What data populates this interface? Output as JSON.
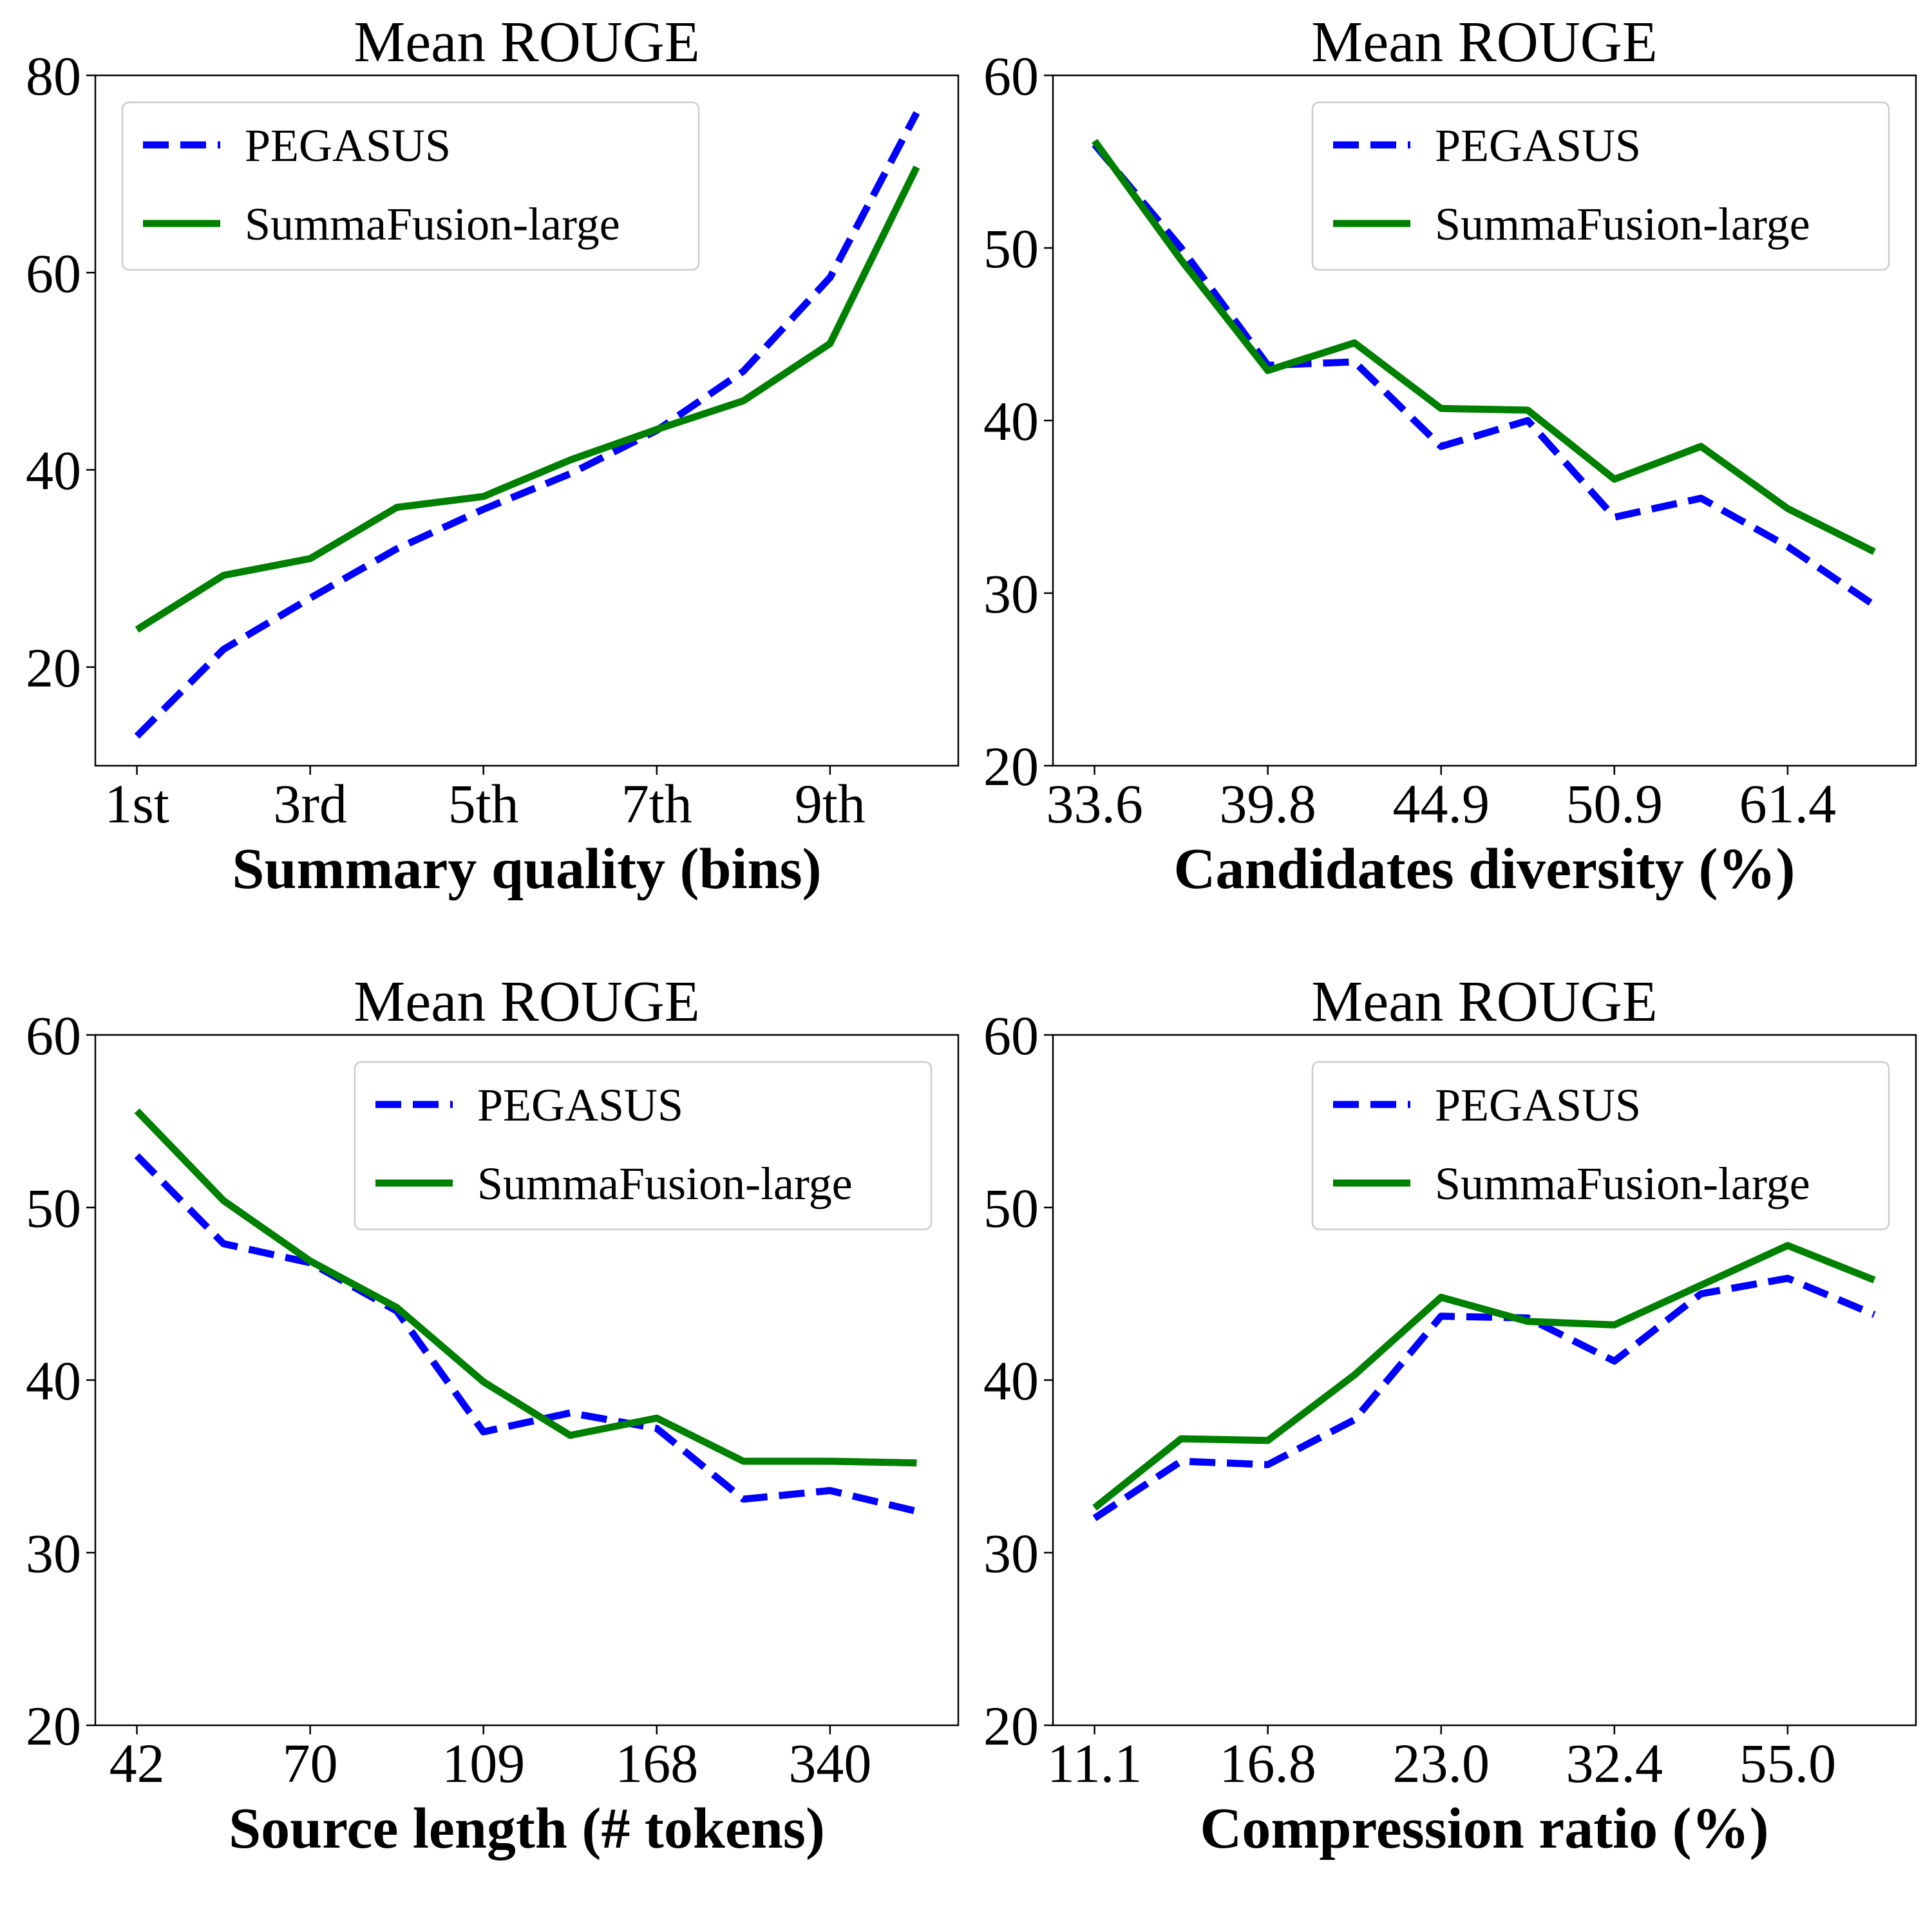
{
  "colors": {
    "pegasus": "#0000ff",
    "summafusion": "#008000"
  },
  "chart_data": [
    {
      "type": "line",
      "title": "Mean ROUGE",
      "xlabel": "Summary quality (bins)",
      "ylabel": "",
      "ylim": [
        10,
        80
      ],
      "yticks": [
        20,
        40,
        60,
        80
      ],
      "xtick_labels": [
        "1st",
        "3rd",
        "5th",
        "7th",
        "9th"
      ],
      "xtick_positions": [
        1,
        3,
        5,
        7,
        9
      ],
      "x": [
        1,
        2,
        3,
        4,
        5,
        6,
        7,
        8,
        9,
        10
      ],
      "legend_position": "upper-left",
      "series": [
        {
          "name": "PEGASUS",
          "style": "dashed",
          "values": [
            13,
            21.8,
            27,
            32,
            36,
            39.6,
            44,
            50,
            59.5,
            76.2
          ]
        },
        {
          "name": "SummaFusion-large",
          "style": "solid",
          "values": [
            23.8,
            29.3,
            31,
            36.2,
            37.3,
            41,
            44.1,
            47,
            52.8,
            70.7
          ]
        }
      ]
    },
    {
      "type": "line",
      "title": "Mean ROUGE",
      "xlabel": "Candidates diversity (%)",
      "ylabel": "",
      "ylim": [
        20,
        60
      ],
      "yticks": [
        20,
        30,
        40,
        50,
        60
      ],
      "xtick_labels": [
        "33.6",
        "39.8",
        "44.9",
        "50.9",
        "61.4"
      ],
      "xtick_positions": [
        1,
        3,
        5,
        7,
        9
      ],
      "x": [
        1,
        2,
        3,
        4,
        5,
        6,
        7,
        8,
        9,
        10
      ],
      "legend_position": "upper-right",
      "series": [
        {
          "name": "PEGASUS",
          "style": "dashed",
          "values": [
            56,
            50,
            43.2,
            43.4,
            38.5,
            40,
            34.4,
            35.5,
            32.7,
            29.3
          ]
        },
        {
          "name": "SummaFusion-large",
          "style": "solid",
          "values": [
            56.2,
            49.3,
            42.9,
            44.5,
            40.7,
            40.6,
            36.6,
            38.5,
            34.9,
            32.4
          ]
        }
      ]
    },
    {
      "type": "line",
      "title": "Mean ROUGE",
      "xlabel": "Source length (# tokens)",
      "ylabel": "",
      "ylim": [
        20,
        60
      ],
      "yticks": [
        20,
        30,
        40,
        50,
        60
      ],
      "xtick_labels": [
        "42",
        "70",
        "109",
        "168",
        "340"
      ],
      "xtick_positions": [
        1,
        3,
        5,
        7,
        9
      ],
      "x": [
        1,
        2,
        3,
        4,
        5,
        6,
        7,
        8,
        9,
        10
      ],
      "legend_position": "upper-right",
      "series": [
        {
          "name": "PEGASUS",
          "style": "dashed",
          "values": [
            53,
            47.9,
            46.8,
            44,
            37,
            38.1,
            37.2,
            33.1,
            33.6,
            32.4
          ]
        },
        {
          "name": "SummaFusion-large",
          "style": "solid",
          "values": [
            55.6,
            50.4,
            46.9,
            44.2,
            39.9,
            36.8,
            37.8,
            35.3,
            35.3,
            35.2
          ]
        }
      ]
    },
    {
      "type": "line",
      "title": "Mean ROUGE",
      "xlabel": "Compression ratio (%)",
      "ylabel": "",
      "ylim": [
        20,
        60
      ],
      "yticks": [
        20,
        30,
        40,
        50,
        60
      ],
      "xtick_labels": [
        "11.1",
        "16.8",
        "23.0",
        "32.4",
        "55.0"
      ],
      "xtick_positions": [
        1,
        3,
        5,
        7,
        9
      ],
      "x": [
        1,
        2,
        3,
        4,
        5,
        6,
        7,
        8,
        9,
        10
      ],
      "legend_position": "upper-right",
      "series": [
        {
          "name": "PEGASUS",
          "style": "dashed",
          "values": [
            32,
            35.3,
            35.1,
            37.7,
            43.7,
            43.6,
            41.1,
            45,
            45.9,
            43.8
          ]
        },
        {
          "name": "SummaFusion-large",
          "style": "solid",
          "values": [
            32.6,
            36.6,
            36.5,
            40.3,
            44.8,
            43.4,
            43.2,
            45.5,
            47.8,
            45.8
          ]
        }
      ]
    }
  ]
}
